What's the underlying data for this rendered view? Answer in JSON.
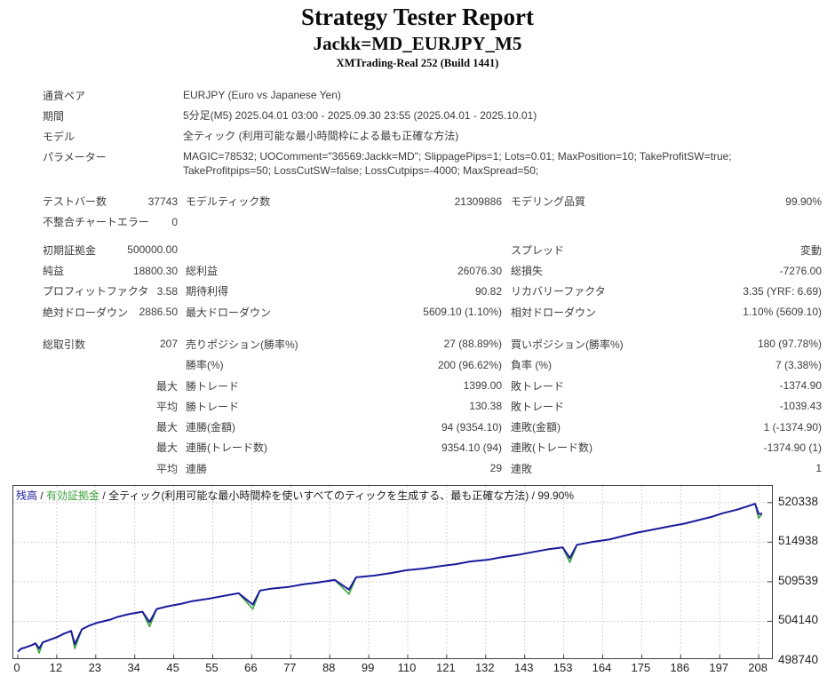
{
  "header": {
    "title": "Strategy Tester Report",
    "subtitle": "Jackk=MD_EURJPY_M5",
    "server_build": "XMTrading-Real 252 (Build 1441)"
  },
  "info_rows": [
    {
      "label": "通貨ペア",
      "value": "EURJPY (Euro vs Japanese Yen)"
    },
    {
      "label": "期間",
      "value": "5分足(M5) 2025.04.01 03:00 - 2025.09.30 23:55 (2025.04.01 - 2025.10.01)"
    },
    {
      "label": "モデル",
      "value": "全ティック (利用可能な最小時間枠による最も正確な方法)"
    },
    {
      "label": "パラメーター",
      "value": "MAGIC=78532; UOComment=\"36569:Jackk=MD\"; SlippagePips=1; Lots=0.01; MaxPosition=10; TakeProfitSW=true;\nTakeProfitpips=50; LossCutSW=false; LossCutpips=-4000; MaxSpread=50;"
    }
  ],
  "stat_groups": [
    {
      "rows": [
        {
          "l1": "テストバー数",
          "v1": "37743",
          "l2": "モデルティック数",
          "v2": "21309886",
          "l3": "モデリング品質",
          "v3": "99.90%"
        },
        {
          "l1": "不整合チャートエラー",
          "v1": "0",
          "l2": "",
          "v2": "",
          "l3": "",
          "v3": ""
        }
      ]
    },
    {
      "rows": [
        {
          "l1": "初期証拠金",
          "v1": "500000.00",
          "l2": "",
          "v2": "",
          "l3": "スプレッド",
          "v3": "変動"
        },
        {
          "l1": "純益",
          "v1": "18800.30",
          "l2": "総利益",
          "v2": "26076.30",
          "l3": "総損失",
          "v3": "-7276.00"
        },
        {
          "l1": "プロフィットファクタ",
          "v1": "3.58",
          "l2": "期待利得",
          "v2": "90.82",
          "l3": "リカバリーファクタ",
          "v3": "3.35 (YRF: 6.69)"
        },
        {
          "l1": "絶対ドローダウン",
          "v1": "2886.50",
          "l2": "最大ドローダウン",
          "v2": "5609.10 (1.10%)",
          "l3": "相対ドローダウン",
          "v3": "1.10% (5609.10)"
        }
      ]
    },
    {
      "rows": [
        {
          "l1": "総取引数",
          "v1": "207",
          "l2": "売りポジション(勝率%)",
          "v2": "27 (88.89%)",
          "l3": "買いポジション(勝率%)",
          "v3": "180 (97.78%)"
        },
        {
          "l1": "",
          "v1": "",
          "l2": "勝率(%)",
          "v2": "200 (96.62%)",
          "l3": "負率 (%)",
          "v3": "7 (3.38%)"
        },
        {
          "l1": "",
          "v1": "最大",
          "l2": "勝トレード",
          "v2": "1399.00",
          "l3": "敗トレード",
          "v3": "-1374.90"
        },
        {
          "l1": "",
          "v1": "平均",
          "l2": "勝トレード",
          "v2": "130.38",
          "l3": "敗トレード",
          "v3": "-1039.43"
        },
        {
          "l1": "",
          "v1": "最大",
          "l2": "連勝(金額)",
          "v2": "94 (9354.10)",
          "l3": "連敗(金額)",
          "v3": "1 (-1374.90)"
        },
        {
          "l1": "",
          "v1": "最大",
          "l2": "連勝(トレード数)",
          "v2": "9354.10 (94)",
          "l3": "連敗(トレード数)",
          "v3": "-1374.90 (1)"
        },
        {
          "l1": "",
          "v1": "平均",
          "l2": "連勝",
          "v2": "29",
          "l3": "連敗",
          "v3": "1"
        }
      ]
    }
  ],
  "chart": {
    "legend": {
      "balance": "残高",
      "equity": "有効証拠金",
      "model": "全ティック(利用可能な最小時間枠を使いすべてのティックを生成する、最も正確な方法)",
      "quality": "99.90%",
      "sep": "/"
    },
    "colors": {
      "balance": "#1b1b9e",
      "equity": "#3da23d",
      "grid": "#c6c6c6",
      "border": "#404040",
      "axis_text": "#222222"
    }
  },
  "chart_data": {
    "type": "line",
    "xlabel": "",
    "ylabel": "",
    "x_ticks": [
      0,
      12,
      23,
      34,
      45,
      55,
      66,
      77,
      88,
      99,
      110,
      121,
      132,
      143,
      153,
      164,
      175,
      186,
      197,
      208
    ],
    "y_ticks": [
      520338,
      514938,
      509539,
      504140,
      498740
    ],
    "y_range": [
      499103,
      522618
    ],
    "x_range": [
      0,
      211
    ],
    "grid": true,
    "legend_position": "top-left-inside",
    "series_names": [
      "残高",
      "有効証拠金"
    ],
    "balance_points": [
      [
        0,
        500000
      ],
      [
        1,
        500420
      ],
      [
        2,
        500540
      ],
      [
        4,
        500900
      ],
      [
        5,
        501140
      ],
      [
        6,
        500420
      ],
      [
        7,
        501260
      ],
      [
        9,
        501620
      ],
      [
        11,
        501980
      ],
      [
        13,
        502460
      ],
      [
        15,
        502820
      ],
      [
        16,
        501020
      ],
      [
        18,
        503060
      ],
      [
        20,
        503540
      ],
      [
        22,
        503900
      ],
      [
        26,
        504380
      ],
      [
        28,
        504740
      ],
      [
        31,
        505100
      ],
      [
        35,
        505460
      ],
      [
        37,
        504020
      ],
      [
        39,
        505820
      ],
      [
        42,
        506180
      ],
      [
        46,
        506540
      ],
      [
        49,
        506900
      ],
      [
        54,
        507260
      ],
      [
        58,
        507620
      ],
      [
        62,
        507980
      ],
      [
        66,
        506420
      ],
      [
        68,
        508340
      ],
      [
        71,
        508580
      ],
      [
        76,
        508820
      ],
      [
        80,
        509180
      ],
      [
        84,
        509420
      ],
      [
        89,
        509780
      ],
      [
        93,
        508460
      ],
      [
        95,
        510140
      ],
      [
        100,
        510380
      ],
      [
        105,
        510740
      ],
      [
        109,
        511100
      ],
      [
        114,
        511340
      ],
      [
        119,
        511700
      ],
      [
        123,
        511940
      ],
      [
        127,
        512300
      ],
      [
        132,
        512540
      ],
      [
        136,
        512900
      ],
      [
        141,
        513260
      ],
      [
        145,
        513620
      ],
      [
        149,
        513980
      ],
      [
        153,
        514220
      ],
      [
        155,
        512780
      ],
      [
        157,
        514580
      ],
      [
        161,
        514940
      ],
      [
        166,
        515300
      ],
      [
        170,
        515780
      ],
      [
        174,
        516260
      ],
      [
        178,
        516620
      ],
      [
        183,
        517100
      ],
      [
        187,
        517460
      ],
      [
        191,
        517940
      ],
      [
        195,
        518420
      ],
      [
        198,
        518900
      ],
      [
        202,
        519380
      ],
      [
        205,
        519860
      ],
      [
        207,
        520180
      ],
      [
        208,
        518800
      ],
      [
        209,
        518830
      ]
    ],
    "equity_dip_indices": [
      5,
      11,
      19,
      27,
      34,
      49,
      64
    ],
    "equity_dip_depth": 600
  }
}
